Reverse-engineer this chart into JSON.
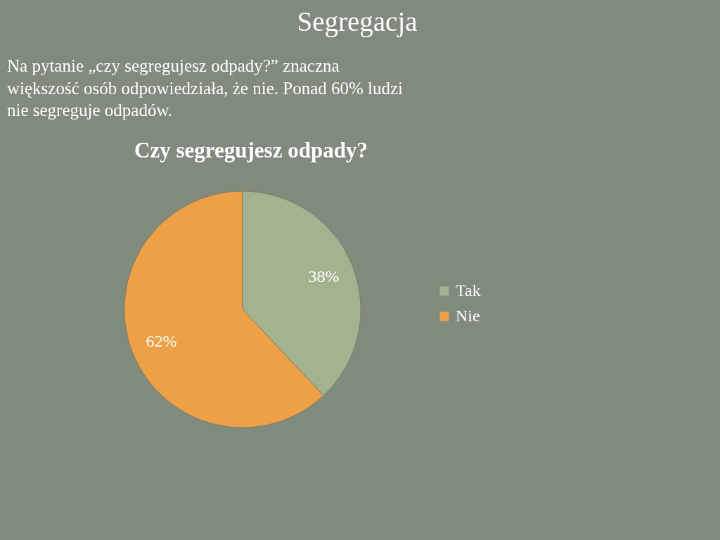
{
  "chart_data": {
    "type": "pie",
    "title": "Segregacja",
    "subtitle": "Czy segregujesz odpady?",
    "annotations": [
      "Na pytanie „czy segregujesz odpady?” znaczna większość osób odpowiedziała, że nie. Ponad 60% ludzi nie segreguje odpadów."
    ],
    "categories": [
      "Tak",
      "Nie"
    ],
    "values": [
      38,
      62
    ],
    "colors": [
      "#a3b38f",
      "#eea046"
    ],
    "value_labels": [
      "38%",
      "62%"
    ],
    "legend": "right"
  }
}
